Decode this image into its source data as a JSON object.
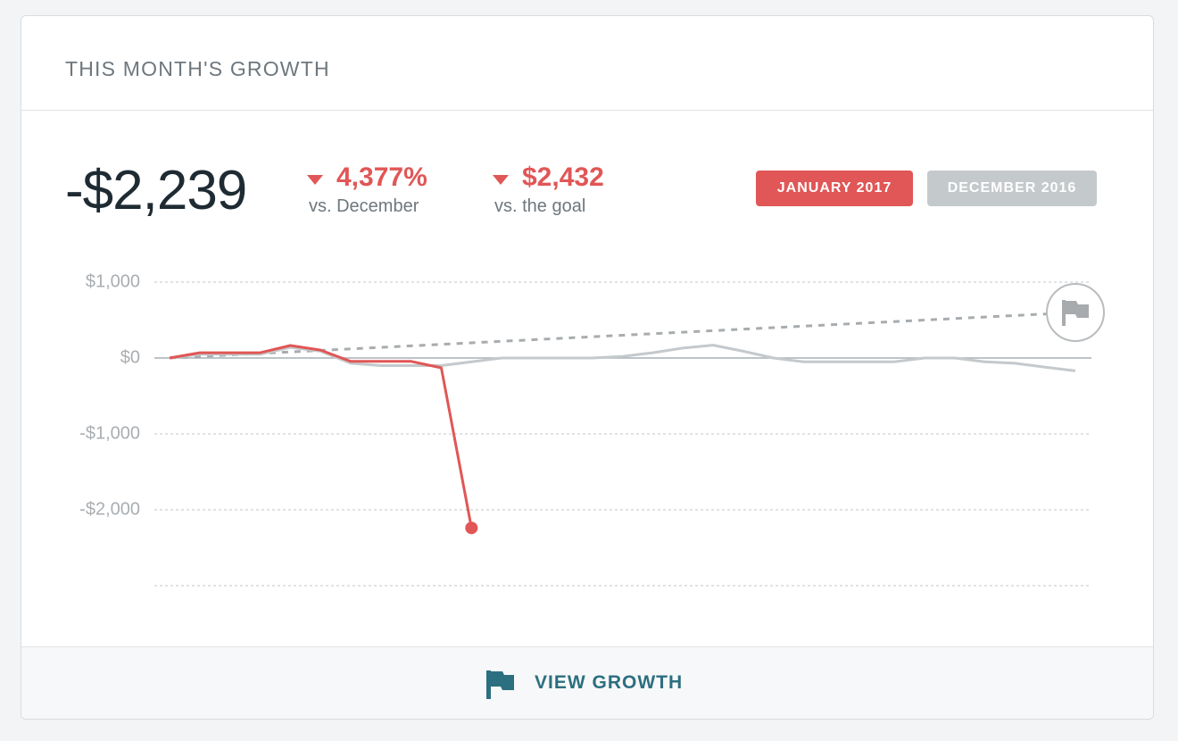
{
  "header": {
    "title": "THIS MONTH'S GROWTH"
  },
  "summary": {
    "value": "-$2,239",
    "stats": [
      {
        "value": "4,377%",
        "label": "vs. December"
      },
      {
        "value": "$2,432",
        "label": "vs. the goal"
      }
    ]
  },
  "chart_data": {
    "type": "line",
    "series": [
      {
        "name": "JANUARY 2017",
        "color": "#e15656",
        "values": [
          0,
          70,
          70,
          70,
          165,
          105,
          -45,
          -45,
          -45,
          -130,
          -2239,
          null,
          null,
          null,
          null,
          null,
          null,
          null,
          null,
          null,
          null,
          null,
          null,
          null,
          null,
          null,
          null,
          null,
          null,
          null,
          null
        ]
      },
      {
        "name": "DECEMBER 2016",
        "color": "#c4c9cc",
        "values": [
          0,
          50,
          50,
          50,
          140,
          90,
          -70,
          -100,
          -100,
          -100,
          -50,
          0,
          0,
          0,
          0,
          20,
          70,
          130,
          170,
          90,
          0,
          -50,
          -50,
          -50,
          -50,
          0,
          0,
          -50,
          -70,
          -120,
          -170
        ]
      }
    ],
    "goal": {
      "color": "#a8acaf",
      "values": [
        0,
        20,
        40,
        60,
        80,
        100,
        120,
        140,
        160,
        180,
        200,
        220,
        240,
        260,
        280,
        300,
        320,
        340,
        360,
        380,
        400,
        420,
        440,
        460,
        480,
        500,
        520,
        540,
        560,
        580,
        600
      ]
    },
    "ylim": [
      -3000,
      1000
    ],
    "yticks": [
      {
        "value": 1000,
        "label": "$1,000"
      },
      {
        "value": 0,
        "label": "$0"
      },
      {
        "value": -1000,
        "label": "-$1,000"
      },
      {
        "value": -2000,
        "label": "-$2,000"
      }
    ],
    "grid": true
  },
  "footer": {
    "link": "VIEW GROWTH"
  }
}
